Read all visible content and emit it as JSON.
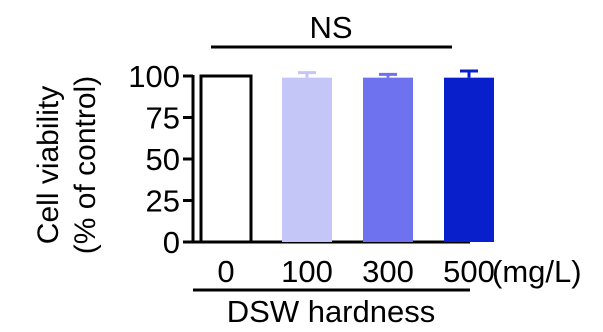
{
  "chart_data": {
    "type": "bar",
    "categories": [
      "0",
      "100",
      "300",
      "500"
    ],
    "values": [
      100,
      99,
      99,
      99
    ],
    "errors": [
      0,
      3,
      2,
      4
    ],
    "bar_fills": [
      "#ffffff",
      "#c4c6f8",
      "#6f72ef",
      "#0a1fcc"
    ],
    "bar_stroke": "#000000",
    "ylim": [
      0,
      100
    ],
    "yticks": [
      0,
      25,
      50,
      75,
      100
    ],
    "ylabel_line1": "Cell viability",
    "ylabel_line2": "(% of control)",
    "x_unit": "(mg/L)",
    "xlabel": "DSW hardness",
    "annotation": "NS",
    "grid": false,
    "legend": "none"
  }
}
